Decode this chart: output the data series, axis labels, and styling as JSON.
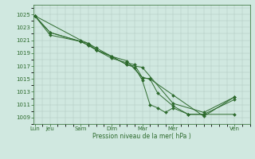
{
  "bg_color": "#d0e8e0",
  "grid_color": "#b0c8c0",
  "line_color": "#2d6a2d",
  "marker_color": "#2d6a2d",
  "xlabel": "Pression niveau de la mer( hPa )",
  "ylim": [
    1008.0,
    1026.5
  ],
  "yticks": [
    1009,
    1011,
    1013,
    1015,
    1017,
    1019,
    1021,
    1023,
    1025
  ],
  "x_labels": [
    "Lun",
    "Jeu",
    "Sam",
    "Dim",
    "Mar",
    "Mer",
    "Ven"
  ],
  "x_ticks": [
    0.0,
    0.5,
    1.5,
    2.5,
    3.5,
    4.5,
    6.5
  ],
  "xlim": [
    -0.05,
    7.0
  ],
  "series": [
    {
      "x": [
        0.0,
        0.5,
        1.5,
        1.75,
        2.0,
        2.5,
        3.0,
        3.5,
        3.75,
        4.5,
        5.5,
        6.5
      ],
      "y": [
        1024.8,
        1022.2,
        1020.8,
        1020.2,
        1019.5,
        1018.5,
        1017.8,
        1015.2,
        1015.0,
        1012.5,
        1009.2,
        1012.2
      ],
      "marker": true
    },
    {
      "x": [
        0.0,
        1.5,
        1.75,
        2.0,
        2.5,
        3.0,
        3.25,
        3.5,
        3.75,
        4.0,
        4.5,
        5.0,
        5.5,
        6.5
      ],
      "y": [
        1024.8,
        1021.0,
        1020.5,
        1019.5,
        1018.2,
        1017.5,
        1017.2,
        1015.2,
        1015.0,
        1012.8,
        1010.8,
        1009.5,
        1009.5,
        1009.5
      ],
      "marker": true
    },
    {
      "x": [
        0.0,
        0.5,
        1.5,
        1.75,
        2.0,
        2.5,
        3.0,
        3.25,
        3.5,
        3.75,
        4.0,
        4.25,
        4.5,
        5.0,
        5.5,
        6.5
      ],
      "y": [
        1024.8,
        1022.2,
        1020.8,
        1020.5,
        1019.8,
        1018.5,
        1017.2,
        1016.8,
        1014.8,
        1011.0,
        1010.5,
        1009.8,
        1010.5,
        1009.5,
        1009.5,
        1011.8
      ],
      "marker": true
    },
    {
      "x": [
        0.0,
        0.5,
        1.5,
        1.75,
        2.0,
        2.5,
        3.0,
        3.5,
        4.5,
        5.5,
        6.5
      ],
      "y": [
        1024.8,
        1021.8,
        1020.8,
        1020.2,
        1019.5,
        1018.5,
        1017.2,
        1016.8,
        1011.2,
        1009.8,
        1012.2
      ],
      "marker": false
    }
  ],
  "figsize": [
    3.2,
    2.0
  ],
  "dpi": 100
}
